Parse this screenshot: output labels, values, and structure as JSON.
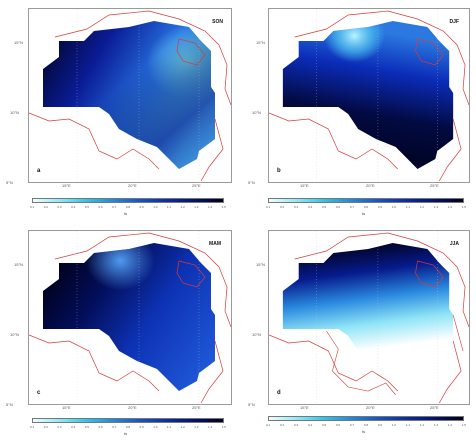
{
  "panels": [
    {
      "letter": "a",
      "season": "SON",
      "y_ticks": [
        "5°N",
        "10°N",
        "15°N"
      ],
      "x_ticks": [
        "15°E",
        "20°E",
        "25°E"
      ],
      "colorbar": {
        "ticks": [
          "0.1",
          "0.2",
          "0.3",
          "0.4",
          "0.5",
          "0.6",
          "0.7",
          "0.8",
          "0.9",
          "1.0",
          "1.1",
          "1.2",
          "1.3",
          "1.4",
          "1.5"
        ],
        "unit": "ts"
      }
    },
    {
      "letter": "b",
      "season": "DJF",
      "y_ticks": [
        "5°N",
        "10°N",
        "15°N"
      ],
      "x_ticks": [
        "15°E",
        "20°E",
        "25°E"
      ],
      "colorbar": {
        "ticks": [
          "0.1",
          "0.2",
          "0.3",
          "0.4",
          "0.5",
          "0.6",
          "0.7",
          "0.8",
          "0.9",
          "1.0",
          "1.1",
          "1.2",
          "1.3",
          "1.4",
          "1.5"
        ],
        "unit": "ts"
      }
    },
    {
      "letter": "c",
      "season": "MAM",
      "y_ticks": [
        "5°N",
        "10°N",
        "15°N"
      ],
      "x_ticks": [
        "15°E",
        "20°E",
        "25°E"
      ],
      "colorbar": {
        "ticks": [
          "0.1",
          "0.2",
          "0.3",
          "0.4",
          "0.5",
          "0.6",
          "0.7",
          "0.8",
          "0.9",
          "1.0",
          "1.1",
          "1.2",
          "1.3",
          "1.4",
          "1.5"
        ],
        "unit": "ts"
      }
    },
    {
      "letter": "d",
      "season": "JJA",
      "y_ticks": [
        "5°N",
        "10°N",
        "15°N"
      ],
      "x_ticks": [
        "15°E",
        "20°E",
        "25°E"
      ],
      "colorbar": {
        "ticks": [
          "0.1",
          "0.2",
          "0.3",
          "0.4",
          "0.5",
          "0.6",
          "0.7",
          "0.8",
          "0.9",
          "1.0",
          "1.1",
          "1.2",
          "1.3",
          "1.4",
          "1.5"
        ],
        "unit": "ts"
      }
    }
  ],
  "colors": {
    "cmap_low": "#e8fbff",
    "cmap_mid": "#38a8ec",
    "cmap_high": "#00001a",
    "border": "#d83a3a"
  }
}
